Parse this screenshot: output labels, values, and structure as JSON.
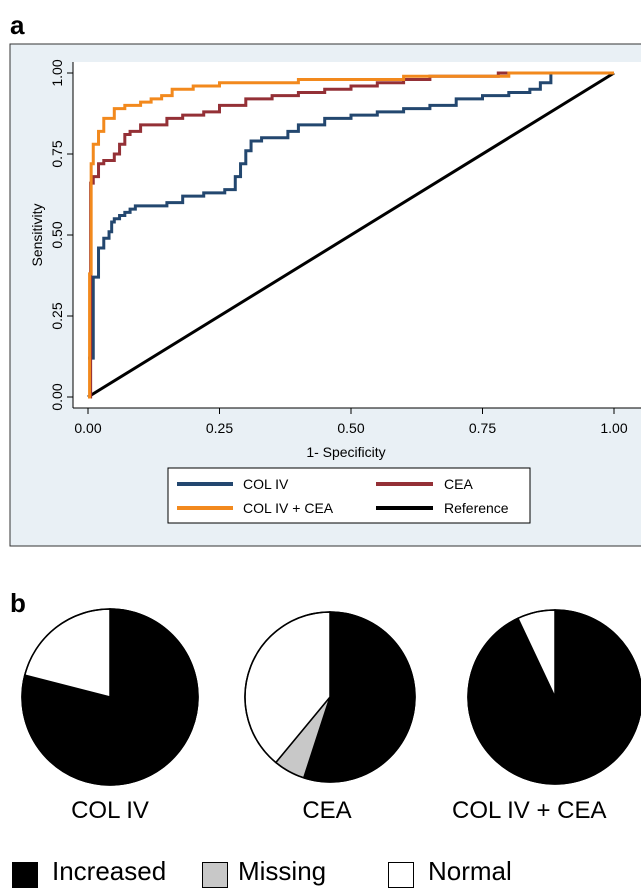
{
  "panel_a_label": "a",
  "panel_b_label": "b",
  "colors": {
    "col_iv": "#23476f",
    "cea": "#943036",
    "combined": "#f2891d",
    "reference": "#000000",
    "panel_bg": "#e9f0f5",
    "increased": "#000000",
    "missing": "#c8c8c8",
    "normal": "#ffffff"
  },
  "chart_data": [
    {
      "type": "line",
      "title": "",
      "xlabel": "1- Specificity",
      "ylabel": "Sensitivity",
      "xlim": [
        0,
        1
      ],
      "ylim": [
        0,
        1
      ],
      "x_ticks": [
        "0.00",
        "0.25",
        "0.50",
        "0.75",
        "1.00"
      ],
      "y_ticks": [
        "0.00",
        "0.25",
        "0.50",
        "0.75",
        "1.00"
      ],
      "grid": false,
      "legend_position": "bottom",
      "series": [
        {
          "name": "COL IV",
          "color": "#23476f",
          "x": [
            0.0,
            0.01,
            0.01,
            0.02,
            0.02,
            0.03,
            0.03,
            0.04,
            0.045,
            0.05,
            0.055,
            0.06,
            0.07,
            0.08,
            0.09,
            0.1,
            0.15,
            0.18,
            0.22,
            0.26,
            0.27,
            0.28,
            0.29,
            0.3,
            0.31,
            0.33,
            0.35,
            0.38,
            0.4,
            0.45,
            0.5,
            0.55,
            0.6,
            0.65,
            0.7,
            0.75,
            0.8,
            0.84,
            0.86,
            0.88,
            0.88,
            1.0
          ],
          "y": [
            0.12,
            0.12,
            0.37,
            0.38,
            0.46,
            0.47,
            0.49,
            0.51,
            0.54,
            0.55,
            0.55,
            0.56,
            0.57,
            0.58,
            0.59,
            0.59,
            0.6,
            0.62,
            0.63,
            0.64,
            0.64,
            0.68,
            0.72,
            0.76,
            0.79,
            0.8,
            0.8,
            0.82,
            0.84,
            0.86,
            0.87,
            0.88,
            0.89,
            0.9,
            0.92,
            0.93,
            0.94,
            0.95,
            0.97,
            0.98,
            1.0,
            1.0
          ]
        },
        {
          "name": "CEA",
          "color": "#943036",
          "x": [
            0.0,
            0.005,
            0.005,
            0.01,
            0.02,
            0.03,
            0.05,
            0.06,
            0.07,
            0.08,
            0.1,
            0.12,
            0.15,
            0.18,
            0.22,
            0.25,
            0.3,
            0.35,
            0.4,
            0.45,
            0.5,
            0.55,
            0.6,
            0.64,
            0.65,
            0.7,
            0.78,
            1.0
          ],
          "y": [
            0.0,
            0.0,
            0.66,
            0.68,
            0.72,
            0.73,
            0.75,
            0.78,
            0.81,
            0.82,
            0.84,
            0.84,
            0.86,
            0.87,
            0.88,
            0.9,
            0.92,
            0.93,
            0.94,
            0.95,
            0.96,
            0.97,
            0.98,
            0.98,
            0.99,
            0.99,
            1.0,
            1.0
          ]
        },
        {
          "name": "COL IV + CEA",
          "color": "#f2891d",
          "x": [
            0.0,
            0.003,
            0.006,
            0.01,
            0.02,
            0.03,
            0.05,
            0.07,
            0.1,
            0.12,
            0.14,
            0.16,
            0.2,
            0.25,
            0.3,
            0.4,
            0.5,
            0.6,
            0.7,
            0.8,
            0.9,
            1.0
          ],
          "y": [
            0.0,
            0.38,
            0.72,
            0.78,
            0.82,
            0.86,
            0.89,
            0.9,
            0.91,
            0.92,
            0.93,
            0.95,
            0.96,
            0.97,
            0.97,
            0.98,
            0.98,
            0.99,
            0.99,
            1.0,
            1.0,
            1.0
          ]
        },
        {
          "name": "Reference",
          "color": "#000000",
          "x": [
            0.0,
            1.0
          ],
          "y": [
            0.0,
            1.0
          ]
        }
      ]
    },
    {
      "type": "pie",
      "title": "COL IV",
      "slices": [
        {
          "name": "Increased",
          "value": 79,
          "color": "#000000"
        },
        {
          "name": "Normal",
          "value": 21,
          "color": "#ffffff"
        }
      ]
    },
    {
      "type": "pie",
      "title": "CEA",
      "slices": [
        {
          "name": "Increased",
          "value": 55,
          "color": "#000000"
        },
        {
          "name": "Missing",
          "value": 6,
          "color": "#c8c8c8"
        },
        {
          "name": "Normal",
          "value": 39,
          "color": "#ffffff"
        }
      ]
    },
    {
      "type": "pie",
      "title": "COL IV + CEA",
      "slices": [
        {
          "name": "Increased",
          "value": 93,
          "color": "#000000"
        },
        {
          "name": "Normal",
          "value": 7,
          "color": "#ffffff"
        }
      ]
    }
  ],
  "pie_legend": [
    {
      "label": "Increased",
      "color": "#000000"
    },
    {
      "label": "Missing",
      "color": "#c8c8c8"
    },
    {
      "label": "Normal",
      "color": "#ffffff"
    }
  ]
}
